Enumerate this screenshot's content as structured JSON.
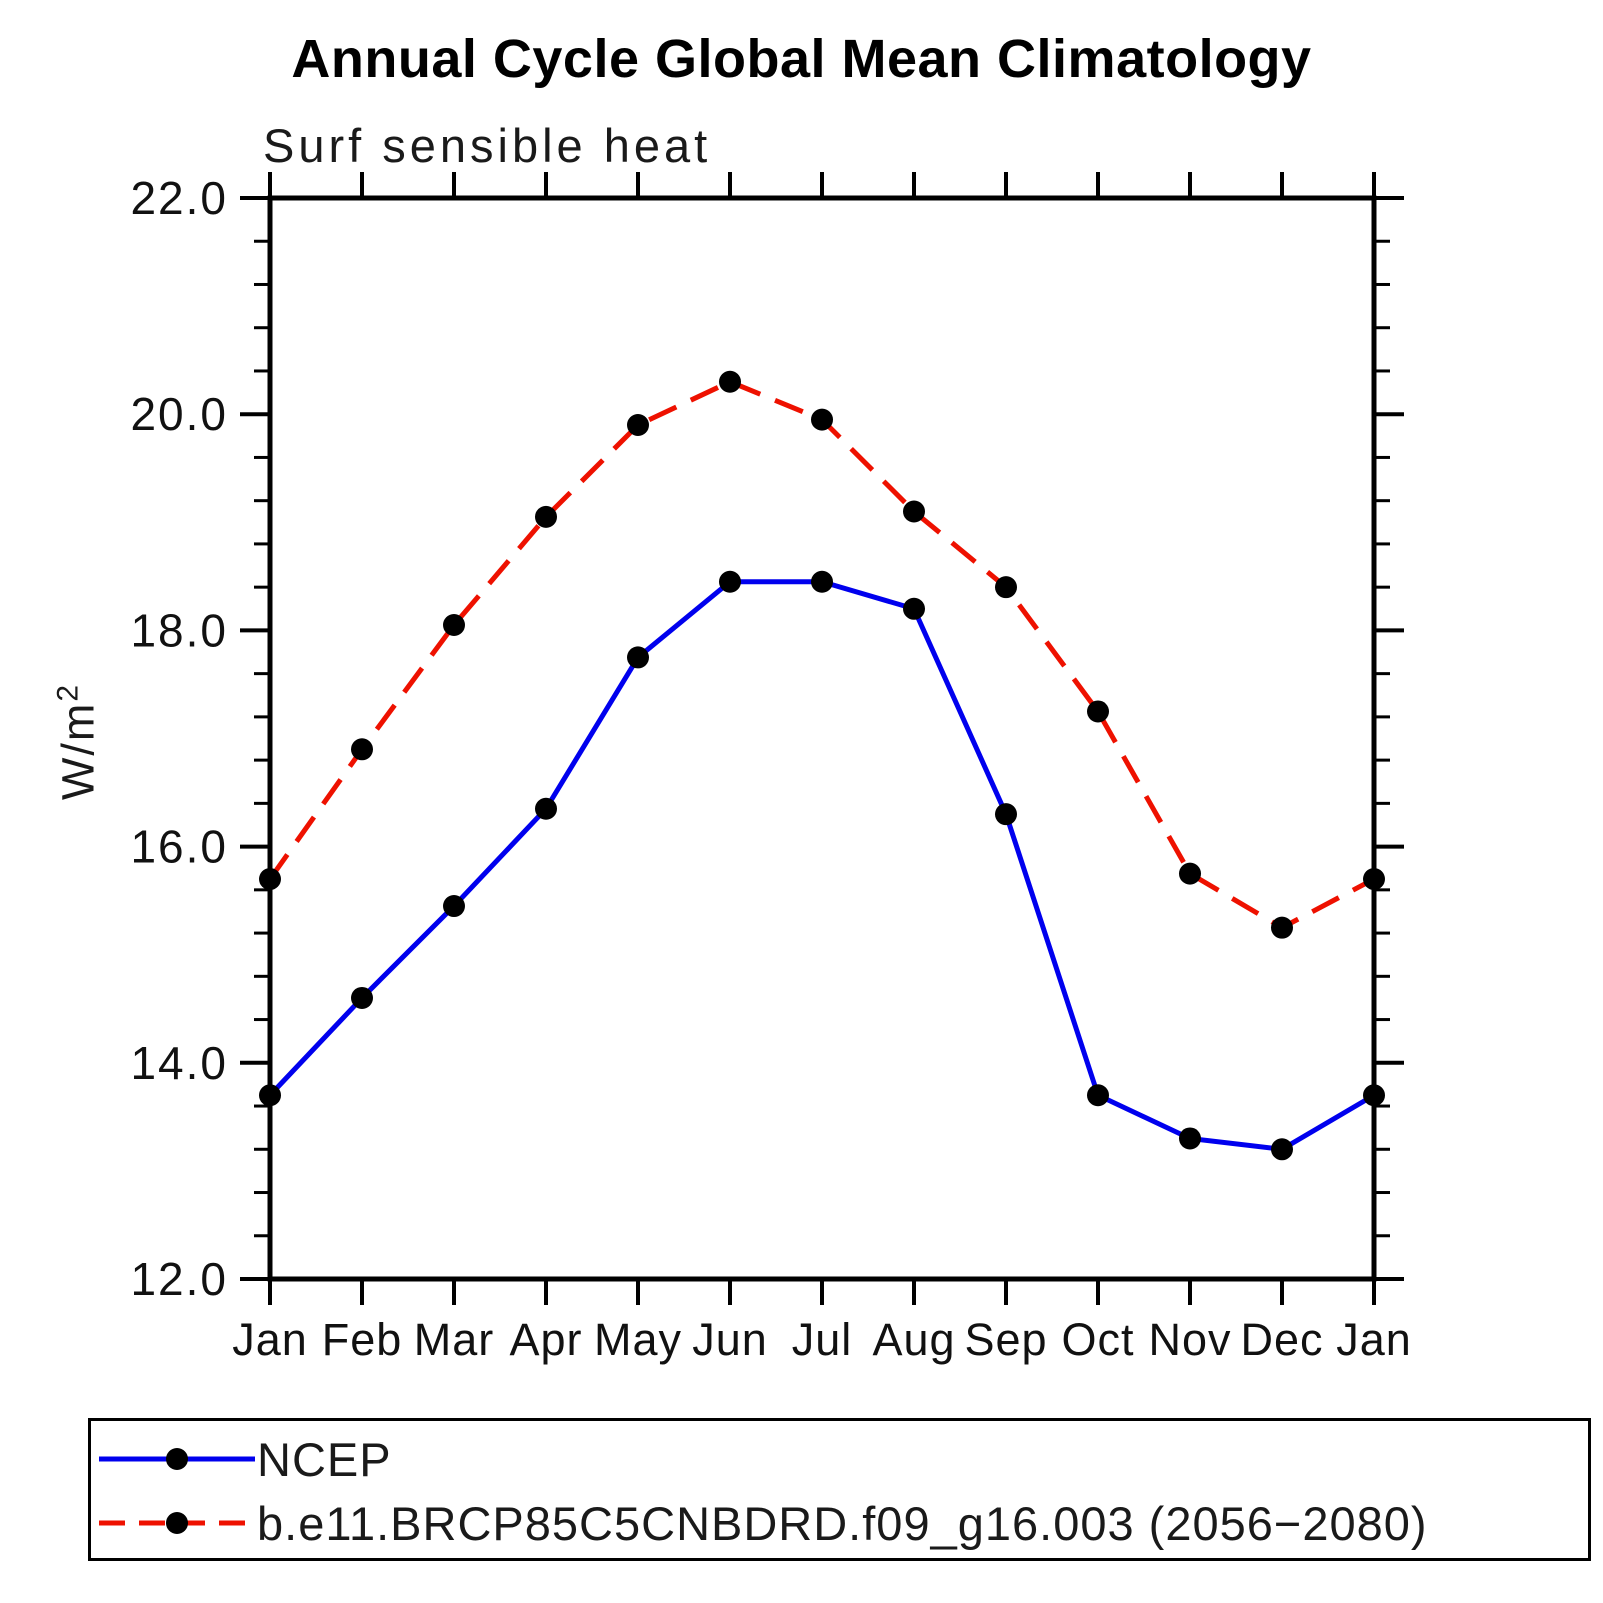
{
  "title": "Annual Cycle Global Mean Climatology",
  "subtitle": "Surf sensible heat",
  "ylabel": {
    "base": "W/m",
    "sup": "2"
  },
  "chart_data": {
    "type": "line",
    "title": "Annual Cycle Global Mean Climatology",
    "subtitle": "Surf sensible heat",
    "ylabel": "W/m2",
    "xlabel": "",
    "categories": [
      "Jan",
      "Feb",
      "Mar",
      "Apr",
      "May",
      "Jun",
      "Jul",
      "Aug",
      "Sep",
      "Oct",
      "Nov",
      "Dec",
      "Jan"
    ],
    "ylim": [
      12.0,
      22.0
    ],
    "ytick_interval": 2.0,
    "yminor_interval": 0.4,
    "grid": false,
    "legend_position": "bottom",
    "marker": "filled-circle",
    "marker_color": "#000000",
    "series": [
      {
        "name": "NCEP",
        "color": "#0000ee",
        "style": "solid",
        "values": [
          13.7,
          14.6,
          15.45,
          16.35,
          17.75,
          18.45,
          18.45,
          18.2,
          16.3,
          13.7,
          13.3,
          13.2,
          13.7
        ]
      },
      {
        "name": "b.e11.BRCP85C5CNBDRD.f09_g16.003 (2056−2080)",
        "color": "#ee1100",
        "style": "dashed",
        "values": [
          15.7,
          16.9,
          18.05,
          19.05,
          19.9,
          20.3,
          19.95,
          19.1,
          18.4,
          17.25,
          15.75,
          15.25,
          15.7
        ]
      }
    ]
  },
  "legend": {
    "entries": [
      {
        "label": "NCEP"
      },
      {
        "label": "b.e11.BRCP85C5CNBDRD.f09_g16.003 (2056−2080)"
      }
    ]
  }
}
